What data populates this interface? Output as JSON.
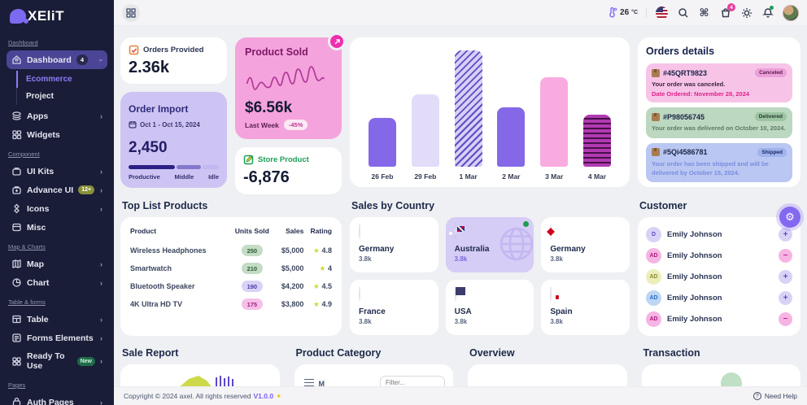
{
  "app": {
    "logo_blob": "A",
    "logo_text": "XEliT"
  },
  "sidebar": {
    "section_dashboard": "Dashboard",
    "dashboard": {
      "label": "Dashboard",
      "badge": "4"
    },
    "ecommerce": "Ecommerce",
    "project": "Project",
    "apps": "Apps",
    "widgets": "Widgets",
    "section_component": "Component",
    "ui_kits": "UI Kits",
    "advance_ui": {
      "label": "Advance UI",
      "badge": "12+"
    },
    "icons": "Icons",
    "misc": "Misc",
    "section_map": "Map & Charts",
    "map": "Map",
    "chart": "Chart",
    "section_table": "Table & forms",
    "table": "Table",
    "forms": "Forms Elements",
    "ready": {
      "label": "Ready To Use",
      "badge": "New"
    },
    "section_pages": "Pages",
    "auth": "Auth Pages"
  },
  "header": {
    "temperature": "26",
    "temp_unit": "°C",
    "command_glyph": "⌘",
    "cart_badge": "4"
  },
  "stats": {
    "orders_provided": {
      "label": "Orders Provided",
      "value": "2.36k"
    },
    "product_sold": {
      "label": "Product Sold",
      "value": "$6.56k",
      "period": "Last Week",
      "delta": "-45%"
    },
    "order_import": {
      "label": "Order Import",
      "range": "Oct 1 - Oct 15, 2024",
      "value": "2,450",
      "legend": {
        "a": "Productive",
        "b": "Middle",
        "c": "Idle"
      }
    },
    "store_product": {
      "label": "Store Product",
      "value": "-6,876"
    }
  },
  "chart_data": {
    "type": "bar",
    "categories": [
      "26 Feb",
      "29 Feb",
      "1 Mar",
      "2 Mar",
      "3 Mar",
      "4 Mar"
    ],
    "values": [
      42,
      62,
      100,
      51,
      77,
      45
    ],
    "styles": [
      "solid-purple",
      "solid-lavender",
      "diagonal-stripe",
      "solid-purple",
      "solid-pink",
      "horizontal-stripe-magenta"
    ],
    "title": "",
    "xlabel": "",
    "ylabel": "",
    "ylim": [
      0,
      100
    ],
    "note": "values are relative bar heights in percent; no y-axis labels shown"
  },
  "orders_details": {
    "title": "Orders details",
    "orders": [
      {
        "id": "#45QRT9823",
        "status": "Canceled",
        "message": "Your order was canceled.",
        "note_label": "Date Ordered:",
        "note": "November 28, 2024"
      },
      {
        "id": "#P98056745",
        "status": "Delivered",
        "message": "Your order was delivered on October 10, 2024."
      },
      {
        "id": "#5Qi4586781",
        "status": "Shipped",
        "message": "Your order has been shipped and will be delivered by October 15, 2024."
      }
    ]
  },
  "top_products": {
    "title": "Top List Products",
    "headers": {
      "product": "Product",
      "units": "Units Sold",
      "sales": "Sales",
      "rating": "Rating"
    },
    "rows": [
      {
        "name": "Wireless Headphones",
        "units": "250",
        "sales": "$5,000",
        "rating": "4.8"
      },
      {
        "name": "Smartwatch",
        "units": "210",
        "sales": "$5,000",
        "rating": "4"
      },
      {
        "name": "Bluetooth Speaker",
        "units": "190",
        "sales": "$4,200",
        "rating": "4.5"
      },
      {
        "name": "4K Ultra HD TV",
        "units": "175",
        "sales": "$3,800",
        "rating": "4.9"
      }
    ]
  },
  "sales_by_country": {
    "title": "Sales by Country",
    "countries": [
      {
        "name": "Germany",
        "value": "3.8k"
      },
      {
        "name": "Australia",
        "value": "3.8k"
      },
      {
        "name": "Germany",
        "value": "3.8k"
      },
      {
        "name": "France",
        "value": "3.8k"
      },
      {
        "name": "USA",
        "value": "3.8k"
      },
      {
        "name": "Spain",
        "value": "3.8k"
      }
    ]
  },
  "customers": {
    "title": "Customer",
    "rows": [
      {
        "initials": "D",
        "name": "Emily Johnson",
        "sign": "+"
      },
      {
        "initials": "AD",
        "name": "Emily Johnson",
        "sign": "−"
      },
      {
        "initials": "AD",
        "name": "Emily Johnson",
        "sign": "+"
      },
      {
        "initials": "AD",
        "name": "Emily Johnson",
        "sign": "+"
      },
      {
        "initials": "AD",
        "name": "Emily Johnson",
        "sign": "−"
      }
    ]
  },
  "bottom": {
    "sale_report": "Sale Report",
    "product_category": "Product Category",
    "category_menu_label": "M",
    "filter_placeholder": "Filter...",
    "overview": "Overview",
    "transaction": "Transaction"
  },
  "footer": {
    "copyright": "Copyright © 2024 axel. All rights reserved",
    "version": "V1.0.0",
    "sparkle": "✦",
    "help": "Need Help"
  }
}
